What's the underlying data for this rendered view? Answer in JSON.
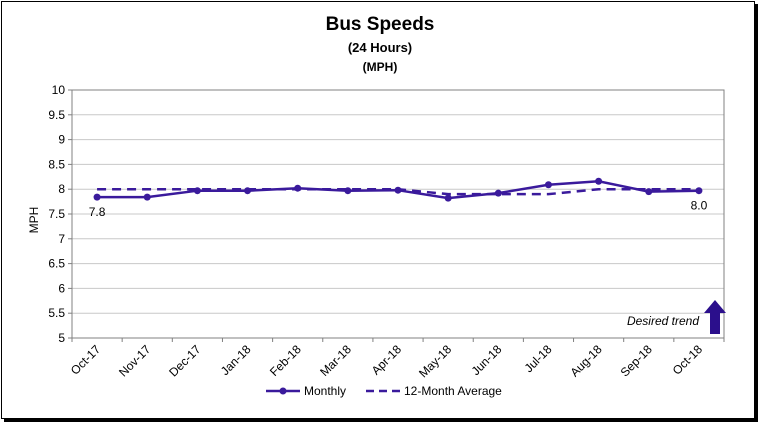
{
  "chart_data": {
    "type": "line",
    "title": "Bus Speeds",
    "subtitle": "(24 Hours)",
    "subtitle2": "(MPH)",
    "ylabel": "MPH",
    "xlabel": "",
    "ylim": [
      5,
      10
    ],
    "yticks": [
      "5",
      "5.5",
      "6",
      "6.5",
      "7",
      "7.5",
      "8",
      "8.5",
      "9",
      "9.5",
      "10"
    ],
    "ytick_values": [
      5,
      5.5,
      6,
      6.5,
      7,
      7.5,
      8,
      8.5,
      9,
      9.5,
      10
    ],
    "categories": [
      "Oct-17",
      "Nov-17",
      "Dec-17",
      "Jan-18",
      "Feb-18",
      "Mar-18",
      "Apr-18",
      "May-18",
      "Jun-18",
      "Jul-18",
      "Aug-18",
      "Sep-18",
      "Oct-18"
    ],
    "grid": true,
    "legend_position": "bottom",
    "series": [
      {
        "name": "Monthly",
        "style": "solid-with-markers",
        "color": "#3a1a9c",
        "values": [
          7.84,
          7.84,
          7.97,
          7.97,
          8.02,
          7.97,
          7.98,
          7.82,
          7.92,
          8.09,
          8.16,
          7.95,
          7.97
        ]
      },
      {
        "name": "12-Month Average",
        "style": "dashed",
        "color": "#3a1a9c",
        "values": [
          8.0,
          8.0,
          8.0,
          8.0,
          8.0,
          8.0,
          8.0,
          7.9,
          7.9,
          7.9,
          8.0,
          8.0,
          8.0
        ]
      }
    ],
    "data_labels": [
      {
        "category": "Oct-17",
        "text": "7.8"
      },
      {
        "category": "Oct-18",
        "text": "8.0"
      }
    ],
    "annotation": {
      "text": "Desired trend",
      "icon": "up-arrow-icon",
      "color": "#2b0f8c"
    }
  }
}
